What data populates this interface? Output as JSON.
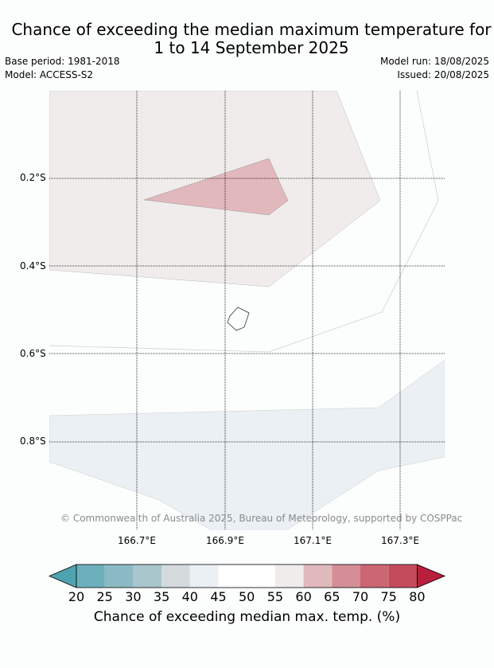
{
  "title_line1": "Chance of exceeding the median maximum temperature for",
  "title_line2": "1 to 14 September 2025",
  "base_period": "Base period: 1981-2018",
  "model": "Model: ACCESS-S2",
  "model_run": "Model run: 18/08/2025",
  "issued": "Issued: 20/08/2025",
  "lat_labels": [
    "0.2°S",
    "0.4°S",
    "0.6°S",
    "0.8°S"
  ],
  "lon_labels": [
    "166.7°E",
    "166.9°E",
    "167.1°E",
    "167.3°E"
  ],
  "copyright": "© Commonwealth of Australia 2025, Bureau of Meteorology, supported by COSPPac",
  "colorbar": {
    "ticks": [
      "20",
      "25",
      "30",
      "35",
      "40",
      "45",
      "50",
      "55",
      "60",
      "65",
      "70",
      "75",
      "80"
    ],
    "colors": [
      "#4fa3b0",
      "#6dafbc",
      "#8bbac4",
      "#a8c6cb",
      "#d5dbdc",
      "#eaf0f3",
      "#ffffff",
      "#ffffff",
      "#f0eceb",
      "#e1b8bc",
      "#d58e96",
      "#cb6672",
      "#c34b5b",
      "#b81f3c"
    ],
    "label": "Chance of exceeding median max. temp. (%)"
  }
}
